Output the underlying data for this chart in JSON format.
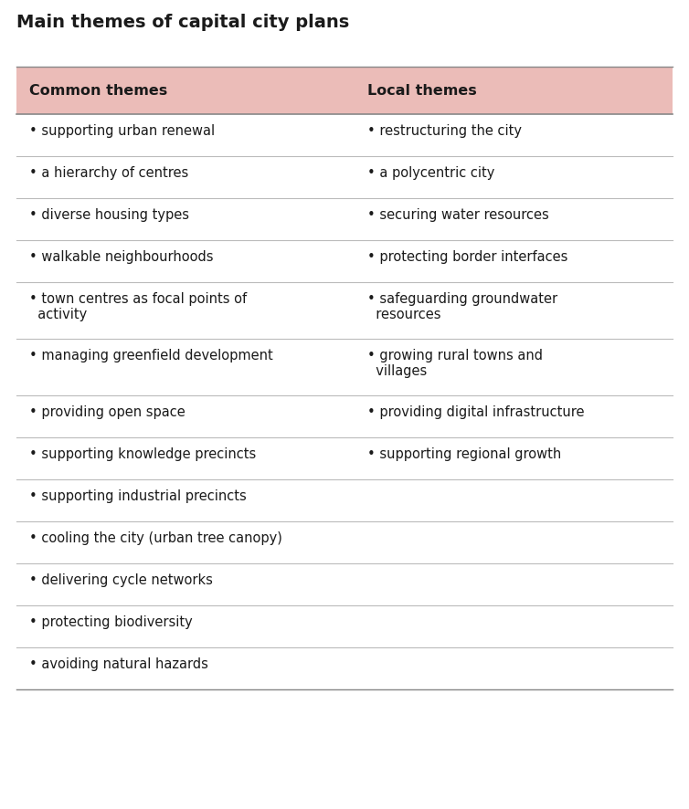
{
  "title": "Main themes of capital city plans",
  "col1_header": "Common themes",
  "col2_header": "Local themes",
  "header_bg_color": "#EBBCB8",
  "bg_color": "#FFFFFF",
  "text_color": "#1a1a1a",
  "divider_color": "#BBBBBB",
  "border_color": "#888888",
  "col1_items": [
    "• supporting urban renewal",
    "• a hierarchy of centres",
    "• diverse housing types",
    "• walkable neighbourhoods",
    "• town centres as focal points of\n  activity",
    "• managing greenfield development",
    "• providing open space",
    "• supporting knowledge precincts",
    "• supporting industrial precincts",
    "• cooling the city (urban tree canopy)",
    "• delivering cycle networks",
    "• protecting biodiversity",
    "• avoiding natural hazards"
  ],
  "col2_items": [
    "• restructuring the city",
    "• a polycentric city",
    "• securing water resources",
    "• protecting border interfaces",
    "• safeguarding groundwater\n  resources",
    "• growing rural towns and\n  villages",
    "• providing digital infrastructure",
    "• supporting regional growth",
    "",
    "",
    "",
    "",
    ""
  ],
  "title_fontsize": 14,
  "header_fontsize": 11.5,
  "body_fontsize": 10.5,
  "fig_width": 7.54,
  "fig_height": 8.86,
  "dpi": 100
}
